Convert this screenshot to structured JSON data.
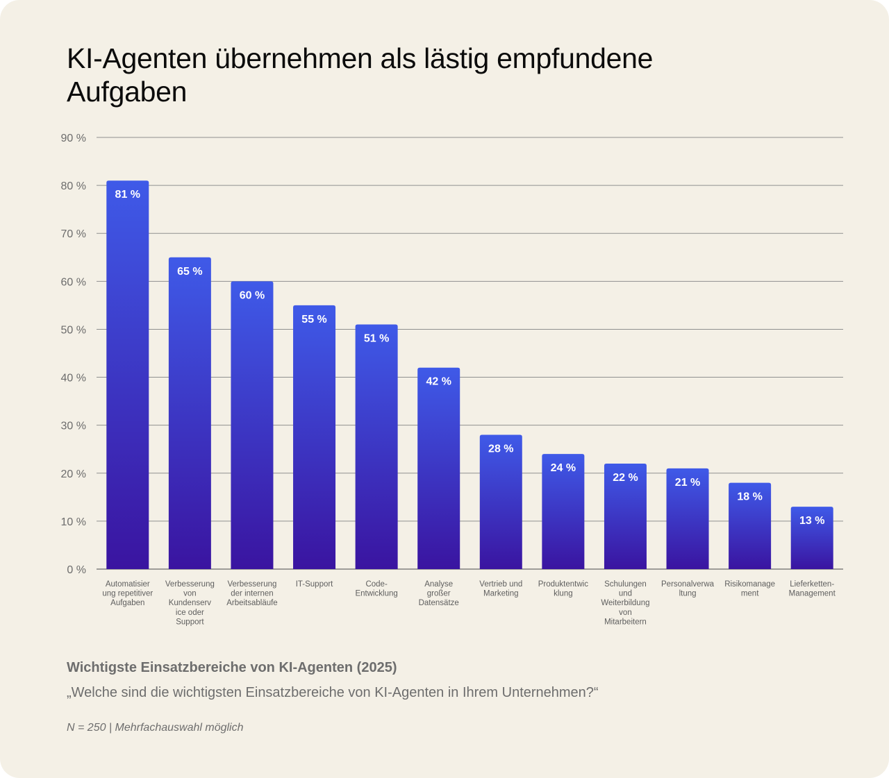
{
  "title": "KI-Agenten übernehmen als lästig empfundene Aufgaben",
  "caption": {
    "title": "Wichtigste Einsatzbereiche von KI-Agenten (2025)",
    "question": "„Welche sind die wichtigsten Einsatzbereiche von KI-Agenten in Ihrem Unternehmen?“",
    "note": "N = 250 | Mehrfachauswahl möglich"
  },
  "colors": {
    "background": "#f4f0e6",
    "bar_top": "#3f5ae8",
    "bar_bottom": "#3a14a0"
  },
  "chart_data": {
    "type": "bar",
    "categories": [
      "Automatisierung repetitiver Aufgaben",
      "Verbesserung von Kundenservice oder Support",
      "Verbesserung der internen Arbeitsabläufe",
      "IT-Support",
      "Code-Entwicklung",
      "Analyse großer Datensätze",
      "Vertrieb und Marketing",
      "Produktentwicklung",
      "Schulungen und Weiterbildung von Mitarbeitern",
      "Personalverwaltung",
      "Risikomanagement",
      "Lieferketten-Management"
    ],
    "category_label_lines": [
      [
        "Automatisier",
        "ung repetitiver",
        "Aufgaben"
      ],
      [
        "Verbesserung",
        "von",
        "Kundenserv",
        "ice oder",
        "Support"
      ],
      [
        "Verbesserung",
        "der internen",
        "Arbeitsabläufe"
      ],
      [
        "IT-Support"
      ],
      [
        "Code-",
        "Entwicklung"
      ],
      [
        "Analyse",
        "großer",
        "Datensätze"
      ],
      [
        "Vertrieb und",
        "Marketing"
      ],
      [
        "Produktentwic",
        "klung"
      ],
      [
        "Schulungen",
        "und",
        "Weiterbildung",
        "von",
        "Mitarbeitern"
      ],
      [
        "Personalverwa",
        "ltung"
      ],
      [
        "Risikomanage",
        "ment"
      ],
      [
        "Lieferketten-",
        "Management"
      ]
    ],
    "values": [
      81,
      65,
      60,
      55,
      51,
      42,
      28,
      24,
      22,
      21,
      18,
      13
    ],
    "value_labels": [
      "81 %",
      "65 %",
      "60 %",
      "55 %",
      "51 %",
      "42 %",
      "28 %",
      "24 %",
      "22 %",
      "21 %",
      "18 %",
      "13 %"
    ],
    "y_ticks": [
      0,
      10,
      20,
      30,
      40,
      50,
      60,
      70,
      80,
      90
    ],
    "y_tick_labels": [
      "0 %",
      "10 %",
      "20 %",
      "30 %",
      "40 %",
      "50 %",
      "60 %",
      "70 %",
      "80 %",
      "90 %"
    ],
    "ylim": [
      0,
      90
    ],
    "grid": true,
    "legend": "none",
    "xlabel": "",
    "ylabel": ""
  }
}
